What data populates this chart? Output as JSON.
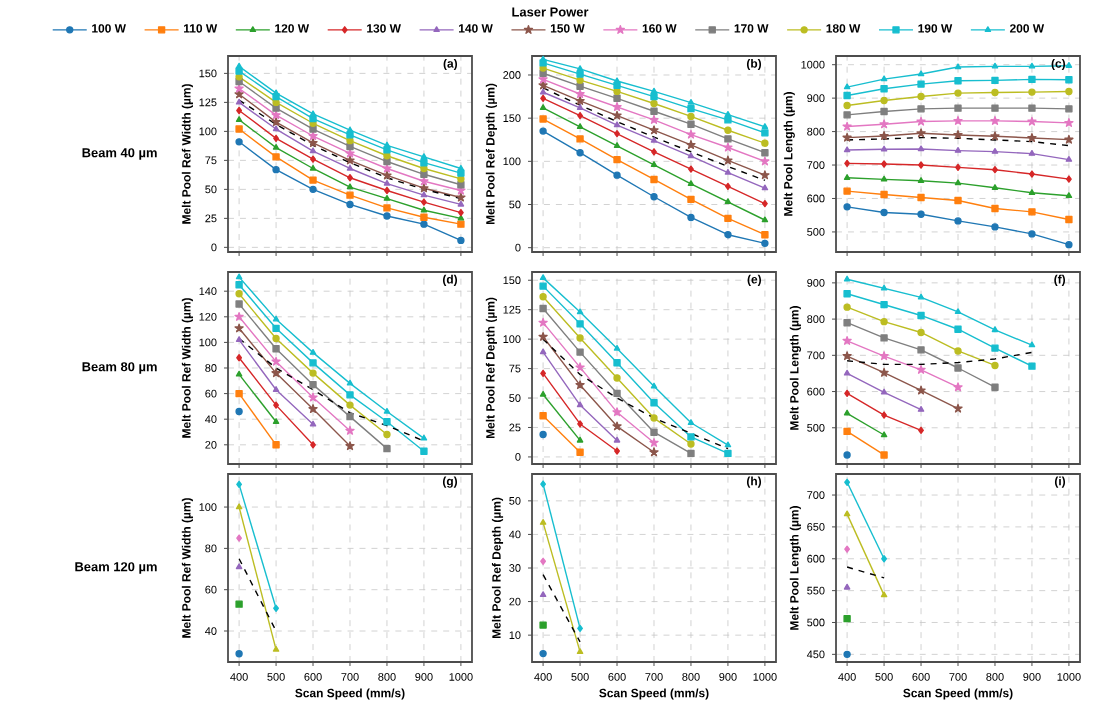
{
  "chart_data": [
    {
      "type": "line",
      "title": "(a)",
      "ylabel": "Melt Pool Ref Width (µm)",
      "annotations": [
        "Beam 40 µm"
      ],
      "legend": "top",
      "legend_title": "Laser Power",
      "x": [
        400,
        500,
        600,
        700,
        800,
        900,
        1000
      ],
      "xlim": [
        370,
        1030
      ],
      "xticks": [
        400,
        500,
        600,
        700,
        800,
        900,
        1000
      ],
      "ylim": [
        -4,
        165
      ],
      "yticks": [
        0,
        25,
        50,
        75,
        100,
        125,
        150
      ],
      "grid": true,
      "tick_labels": "y",
      "series": [
        {
          "name": "100 W",
          "color": "#1f77b4",
          "marker": "circle",
          "values": [
            91,
            67,
            50,
            37,
            27,
            20,
            6
          ]
        },
        {
          "name": "110 W",
          "color": "#ff7f0e",
          "marker": "square",
          "values": [
            102,
            78,
            58,
            45,
            34,
            26,
            20
          ]
        },
        {
          "name": "120 W",
          "color": "#2ca02c",
          "marker": "triangle",
          "values": [
            110,
            86,
            68,
            52,
            42,
            32,
            25
          ]
        },
        {
          "name": "130 W",
          "color": "#d62728",
          "marker": "diamond",
          "values": [
            118,
            94,
            76,
            60,
            49,
            39,
            30
          ]
        },
        {
          "name": "140 W",
          "color": "#9467bd",
          "marker": "triangle",
          "values": [
            125,
            102,
            83,
            68,
            55,
            45,
            37
          ]
        },
        {
          "name": "150 W",
          "color": "#8c564b",
          "marker": "star",
          "values": [
            132,
            108,
            90,
            75,
            62,
            51,
            43
          ]
        },
        {
          "name": "160 W",
          "color": "#e377c2",
          "marker": "star",
          "values": [
            137,
            114,
            96,
            81,
            68,
            57,
            49
          ]
        },
        {
          "name": "170 W",
          "color": "#7f7f7f",
          "marker": "square",
          "values": [
            143,
            120,
            102,
            87,
            74,
            63,
            54
          ]
        },
        {
          "name": "180 W",
          "color": "#bcbd22",
          "marker": "circle",
          "values": [
            147,
            125,
            107,
            92,
            79,
            68,
            59
          ]
        },
        {
          "name": "190 W",
          "color": "#17becf",
          "marker": "square",
          "values": [
            152,
            130,
            111,
            97,
            84,
            73,
            64
          ]
        },
        {
          "name": "200 W",
          "color": "#17becf",
          "marker": "triangle",
          "values": [
            156,
            133,
            115,
            101,
            88,
            78,
            68
          ]
        },
        {
          "color": "#000000",
          "marker": "none",
          "line_style": "dashed",
          "values": [
            127,
            106,
            88,
            73,
            60,
            50,
            42
          ]
        }
      ]
    },
    {
      "type": "line",
      "title": "(b)",
      "ylabel": "Melt Pool Ref Depth (µm)",
      "x": [
        400,
        500,
        600,
        700,
        800,
        900,
        1000
      ],
      "xlim": [
        370,
        1030
      ],
      "xticks": [
        400,
        500,
        600,
        700,
        800,
        900,
        1000
      ],
      "ylim": [
        -5,
        222
      ],
      "yticks": [
        0,
        50,
        100,
        150,
        200
      ],
      "grid": true,
      "tick_labels": "y",
      "series": [
        {
          "color": "#1f77b4",
          "marker": "circle",
          "values": [
            135,
            110,
            84,
            59,
            35,
            15,
            5
          ]
        },
        {
          "color": "#ff7f0e",
          "marker": "square",
          "values": [
            149,
            126,
            102,
            79,
            56,
            34,
            15
          ]
        },
        {
          "color": "#2ca02c",
          "marker": "triangle",
          "values": [
            162,
            140,
            118,
            96,
            74,
            53,
            32
          ]
        },
        {
          "color": "#d62728",
          "marker": "diamond",
          "values": [
            173,
            153,
            132,
            111,
            91,
            71,
            51
          ]
        },
        {
          "color": "#9467bd",
          "marker": "triangle",
          "values": [
            180,
            162,
            142,
            124,
            106,
            87,
            69
          ]
        },
        {
          "color": "#8c564b",
          "marker": "star",
          "values": [
            188,
            170,
            153,
            136,
            119,
            101,
            84
          ]
        },
        {
          "color": "#e377c2",
          "marker": "star",
          "values": [
            195,
            178,
            163,
            148,
            131,
            116,
            100
          ]
        },
        {
          "color": "#7f7f7f",
          "marker": "square",
          "values": [
            202,
            187,
            173,
            158,
            143,
            126,
            110
          ]
        },
        {
          "color": "#bcbd22",
          "marker": "circle",
          "values": [
            208,
            194,
            181,
            167,
            152,
            136,
            121
          ]
        },
        {
          "color": "#17becf",
          "marker": "square",
          "values": [
            214,
            201,
            188,
            175,
            161,
            148,
            133
          ]
        },
        {
          "color": "#17becf",
          "marker": "triangle",
          "values": [
            218,
            207,
            193,
            181,
            168,
            154,
            140
          ]
        },
        {
          "color": "#000000",
          "marker": "none",
          "line_style": "dashed",
          "values": [
            185,
            165,
            146,
            128,
            111,
            94,
            78
          ]
        }
      ]
    },
    {
      "type": "line",
      "title": "(c)",
      "ylabel": "Melt Pool Length (µm)",
      "x": [
        400,
        500,
        600,
        700,
        800,
        900,
        1000
      ],
      "xlim": [
        370,
        1030
      ],
      "xticks": [
        400,
        500,
        600,
        700,
        800,
        900,
        1000
      ],
      "ylim": [
        440,
        1026
      ],
      "yticks": [
        500,
        600,
        700,
        800,
        900,
        1000
      ],
      "grid": true,
      "tick_labels": "y",
      "series": [
        {
          "color": "#1f77b4",
          "marker": "circle",
          "values": [
            575,
            558,
            553,
            533,
            515,
            494,
            462
          ]
        },
        {
          "color": "#ff7f0e",
          "marker": "square",
          "values": [
            622,
            612,
            603,
            594,
            570,
            560,
            537
          ]
        },
        {
          "color": "#2ca02c",
          "marker": "triangle",
          "values": [
            662,
            657,
            653,
            646,
            632,
            617,
            608
          ]
        },
        {
          "color": "#d62728",
          "marker": "diamond",
          "values": [
            705,
            703,
            700,
            693,
            686,
            673,
            658
          ]
        },
        {
          "color": "#9467bd",
          "marker": "triangle",
          "values": [
            745,
            747,
            748,
            743,
            740,
            734,
            716
          ]
        },
        {
          "color": "#8c564b",
          "marker": "star",
          "values": [
            782,
            787,
            795,
            790,
            786,
            781,
            776
          ]
        },
        {
          "color": "#e377c2",
          "marker": "star",
          "values": [
            815,
            822,
            830,
            832,
            832,
            830,
            826
          ]
        },
        {
          "color": "#7f7f7f",
          "marker": "square",
          "values": [
            850,
            860,
            868,
            870,
            870,
            870,
            868
          ]
        },
        {
          "color": "#bcbd22",
          "marker": "circle",
          "values": [
            878,
            893,
            905,
            915,
            917,
            918,
            920
          ]
        },
        {
          "color": "#17becf",
          "marker": "square",
          "values": [
            908,
            928,
            942,
            952,
            953,
            956,
            955
          ]
        },
        {
          "color": "#17becf",
          "marker": "triangle",
          "values": [
            933,
            957,
            972,
            993,
            995,
            995,
            997
          ]
        },
        {
          "color": "#000000",
          "marker": "none",
          "line_style": "dashed",
          "values": [
            775,
            778,
            782,
            780,
            775,
            770,
            758
          ]
        }
      ]
    },
    {
      "type": "line",
      "title": "(d)",
      "ylabel": "Melt Pool Ref Width (µm)",
      "annotations": [
        "Beam 80 µm"
      ],
      "x": [
        400,
        500,
        600,
        700,
        800,
        900
      ],
      "xlim": [
        370,
        1030
      ],
      "xticks": [
        400,
        500,
        600,
        700,
        800,
        900,
        1000
      ],
      "ylim": [
        5,
        155
      ],
      "yticks": [
        20,
        40,
        60,
        80,
        100,
        120,
        140
      ],
      "grid": true,
      "tick_labels": "y",
      "series": [
        {
          "color": "#1f77b4",
          "marker": "circle",
          "values": [
            46,
            null,
            null,
            null,
            null,
            null
          ]
        },
        {
          "color": "#ff7f0e",
          "marker": "square",
          "values": [
            60,
            20,
            null,
            null,
            null,
            null
          ]
        },
        {
          "color": "#2ca02c",
          "marker": "triangle",
          "values": [
            75,
            38,
            null,
            null,
            null,
            null
          ]
        },
        {
          "color": "#d62728",
          "marker": "diamond",
          "values": [
            88,
            51,
            20,
            null,
            null,
            null
          ]
        },
        {
          "color": "#9467bd",
          "marker": "triangle",
          "values": [
            102,
            63,
            36,
            null,
            null,
            null
          ]
        },
        {
          "color": "#8c564b",
          "marker": "star",
          "values": [
            111,
            76,
            48,
            19,
            null,
            null
          ]
        },
        {
          "color": "#e377c2",
          "marker": "star",
          "values": [
            120,
            85,
            57,
            31,
            null,
            null
          ]
        },
        {
          "color": "#7f7f7f",
          "marker": "square",
          "values": [
            130,
            95,
            67,
            42,
            17,
            null
          ]
        },
        {
          "color": "#bcbd22",
          "marker": "circle",
          "values": [
            138,
            103,
            76,
            51,
            28,
            null
          ]
        },
        {
          "color": "#17becf",
          "marker": "square",
          "values": [
            145,
            111,
            84,
            59,
            38,
            15
          ]
        },
        {
          "color": "#17becf",
          "marker": "triangle",
          "values": [
            151,
            118,
            92,
            68,
            46,
            25
          ]
        },
        {
          "color": "#000000",
          "marker": "none",
          "line_style": "dashed",
          "values": [
            103,
            80,
            63,
            45,
            35,
            23
          ]
        }
      ]
    },
    {
      "type": "line",
      "title": "(e)",
      "ylabel": "Melt Pool Ref Depth (µm)",
      "x": [
        400,
        500,
        600,
        700,
        800,
        900
      ],
      "xlim": [
        370,
        1030
      ],
      "xticks": [
        400,
        500,
        600,
        700,
        800,
        900,
        1000
      ],
      "ylim": [
        -6,
        157
      ],
      "yticks": [
        0,
        25,
        50,
        75,
        100,
        125,
        150
      ],
      "grid": true,
      "tick_labels": "y",
      "series": [
        {
          "color": "#1f77b4",
          "marker": "circle",
          "values": [
            19,
            null,
            null,
            null,
            null,
            null
          ]
        },
        {
          "color": "#ff7f0e",
          "marker": "square",
          "values": [
            35,
            4,
            null,
            null,
            null,
            null
          ]
        },
        {
          "color": "#2ca02c",
          "marker": "triangle",
          "values": [
            53,
            14,
            null,
            null,
            null,
            null
          ]
        },
        {
          "color": "#d62728",
          "marker": "diamond",
          "values": [
            71,
            28,
            5,
            null,
            null,
            null
          ]
        },
        {
          "color": "#9467bd",
          "marker": "triangle",
          "values": [
            89,
            44,
            14,
            null,
            null,
            null
          ]
        },
        {
          "color": "#8c564b",
          "marker": "star",
          "values": [
            102,
            61,
            26,
            4,
            null,
            null
          ]
        },
        {
          "color": "#e377c2",
          "marker": "star",
          "values": [
            114,
            76,
            38,
            12,
            null,
            null
          ]
        },
        {
          "color": "#7f7f7f",
          "marker": "square",
          "values": [
            126,
            89,
            54,
            21,
            3,
            null
          ]
        },
        {
          "color": "#bcbd22",
          "marker": "circle",
          "values": [
            136,
            101,
            67,
            33,
            11,
            null
          ]
        },
        {
          "color": "#17becf",
          "marker": "square",
          "values": [
            145,
            113,
            80,
            46,
            17,
            3
          ]
        },
        {
          "color": "#17becf",
          "marker": "triangle",
          "values": [
            152,
            123,
            92,
            60,
            29,
            10
          ]
        },
        {
          "color": "#000000",
          "marker": "none",
          "line_style": "dashed",
          "values": [
            100,
            70,
            50,
            33,
            20,
            7
          ]
        }
      ]
    },
    {
      "type": "line",
      "title": "(f)",
      "ylabel": "Melt Pool Length (µm)",
      "x": [
        400,
        500,
        600,
        700,
        800,
        900
      ],
      "xlim": [
        370,
        1030
      ],
      "xticks": [
        400,
        500,
        600,
        700,
        800,
        900,
        1000
      ],
      "ylim": [
        400,
        930
      ],
      "yticks": [
        500,
        600,
        700,
        800,
        900
      ],
      "grid": true,
      "tick_labels": "y",
      "series": [
        {
          "color": "#1f77b4",
          "marker": "circle",
          "values": [
            425,
            null,
            null,
            null,
            null,
            null
          ]
        },
        {
          "color": "#ff7f0e",
          "marker": "square",
          "values": [
            490,
            425,
            null,
            null,
            null,
            null
          ]
        },
        {
          "color": "#2ca02c",
          "marker": "triangle",
          "values": [
            540,
            480,
            null,
            null,
            null,
            null
          ]
        },
        {
          "color": "#d62728",
          "marker": "diamond",
          "values": [
            595,
            535,
            493,
            null,
            null,
            null
          ]
        },
        {
          "color": "#9467bd",
          "marker": "triangle",
          "values": [
            650,
            598,
            550,
            null,
            null,
            null
          ]
        },
        {
          "color": "#8c564b",
          "marker": "star",
          "values": [
            698,
            652,
            603,
            553,
            null,
            null
          ]
        },
        {
          "color": "#e377c2",
          "marker": "star",
          "values": [
            740,
            698,
            660,
            612,
            null,
            null
          ]
        },
        {
          "color": "#7f7f7f",
          "marker": "square",
          "values": [
            790,
            748,
            715,
            665,
            612,
            null
          ]
        },
        {
          "color": "#bcbd22",
          "marker": "circle",
          "values": [
            833,
            793,
            763,
            712,
            672,
            null
          ]
        },
        {
          "color": "#17becf",
          "marker": "square",
          "values": [
            870,
            840,
            810,
            772,
            720,
            670
          ]
        },
        {
          "color": "#17becf",
          "marker": "triangle",
          "values": [
            910,
            885,
            860,
            820,
            770,
            728
          ]
        },
        {
          "color": "#000000",
          "marker": "none",
          "line_style": "dashed",
          "values": [
            685,
            675,
            675,
            680,
            690,
            708
          ]
        }
      ]
    },
    {
      "type": "line",
      "title": "(g)",
      "xlabel": "Scan Speed (mm/s)",
      "ylabel": "Melt Pool Ref Width (µm)",
      "annotations": [
        "Beam 120 µm"
      ],
      "x": [
        400,
        500
      ],
      "xlim": [
        370,
        1030
      ],
      "xticks": [
        400,
        500,
        600,
        700,
        800,
        900,
        1000
      ],
      "ylim": [
        25,
        116
      ],
      "yticks": [
        40,
        60,
        80,
        100
      ],
      "grid": true,
      "series": [
        {
          "color": "#1f77b4",
          "marker": "circle",
          "values": [
            29,
            null
          ]
        },
        {
          "color": "#2ca02c",
          "marker": "square",
          "values": [
            53,
            null
          ]
        },
        {
          "color": "#9467bd",
          "marker": "triangle",
          "values": [
            71,
            null
          ]
        },
        {
          "color": "#e377c2",
          "marker": "diamond",
          "values": [
            85,
            null
          ]
        },
        {
          "color": "#bcbd22",
          "marker": "triangle",
          "values": [
            100,
            31
          ]
        },
        {
          "color": "#17becf",
          "marker": "diamond",
          "values": [
            111,
            51
          ]
        },
        {
          "color": "#000000",
          "marker": "none",
          "line_style": "dashed",
          "values": [
            75,
            40
          ]
        }
      ]
    },
    {
      "type": "line",
      "title": "(h)",
      "xlabel": "Scan Speed (mm/s)",
      "ylabel": "Melt Pool Ref Depth (µm)",
      "x": [
        400,
        500
      ],
      "xlim": [
        370,
        1030
      ],
      "xticks": [
        400,
        500,
        600,
        700,
        800,
        900,
        1000
      ],
      "ylim": [
        2,
        58
      ],
      "yticks": [
        10,
        20,
        30,
        40,
        50
      ],
      "grid": true,
      "series": [
        {
          "color": "#1f77b4",
          "marker": "circle",
          "values": [
            4.5,
            null
          ]
        },
        {
          "color": "#2ca02c",
          "marker": "square",
          "values": [
            13,
            null
          ]
        },
        {
          "color": "#9467bd",
          "marker": "triangle",
          "values": [
            22,
            null
          ]
        },
        {
          "color": "#e377c2",
          "marker": "diamond",
          "values": [
            32,
            null
          ]
        },
        {
          "color": "#bcbd22",
          "marker": "triangle",
          "values": [
            43.5,
            5
          ]
        },
        {
          "color": "#17becf",
          "marker": "diamond",
          "values": [
            55,
            12
          ]
        },
        {
          "color": "#000000",
          "marker": "none",
          "line_style": "dashed",
          "values": [
            28,
            8
          ]
        }
      ]
    },
    {
      "type": "line",
      "title": "(i)",
      "xlabel": "Scan Speed (mm/s)",
      "ylabel": "Melt Pool Length (µm)",
      "x": [
        400,
        500
      ],
      "xlim": [
        370,
        1030
      ],
      "xticks": [
        400,
        500,
        600,
        700,
        800,
        900,
        1000
      ],
      "ylim": [
        438,
        733
      ],
      "yticks": [
        450,
        500,
        550,
        600,
        650,
        700
      ],
      "grid": true,
      "series": [
        {
          "color": "#1f77b4",
          "marker": "circle",
          "values": [
            450,
            null
          ]
        },
        {
          "color": "#2ca02c",
          "marker": "square",
          "values": [
            506,
            null
          ]
        },
        {
          "color": "#9467bd",
          "marker": "triangle",
          "values": [
            555,
            null
          ]
        },
        {
          "color": "#e377c2",
          "marker": "diamond",
          "values": [
            615,
            null
          ]
        },
        {
          "color": "#bcbd22",
          "marker": "triangle",
          "values": [
            670,
            543
          ]
        },
        {
          "color": "#17becf",
          "marker": "diamond",
          "values": [
            720,
            600
          ]
        },
        {
          "color": "#000000",
          "marker": "none",
          "line_style": "dashed",
          "values": [
            587,
            570
          ]
        }
      ]
    }
  ]
}
